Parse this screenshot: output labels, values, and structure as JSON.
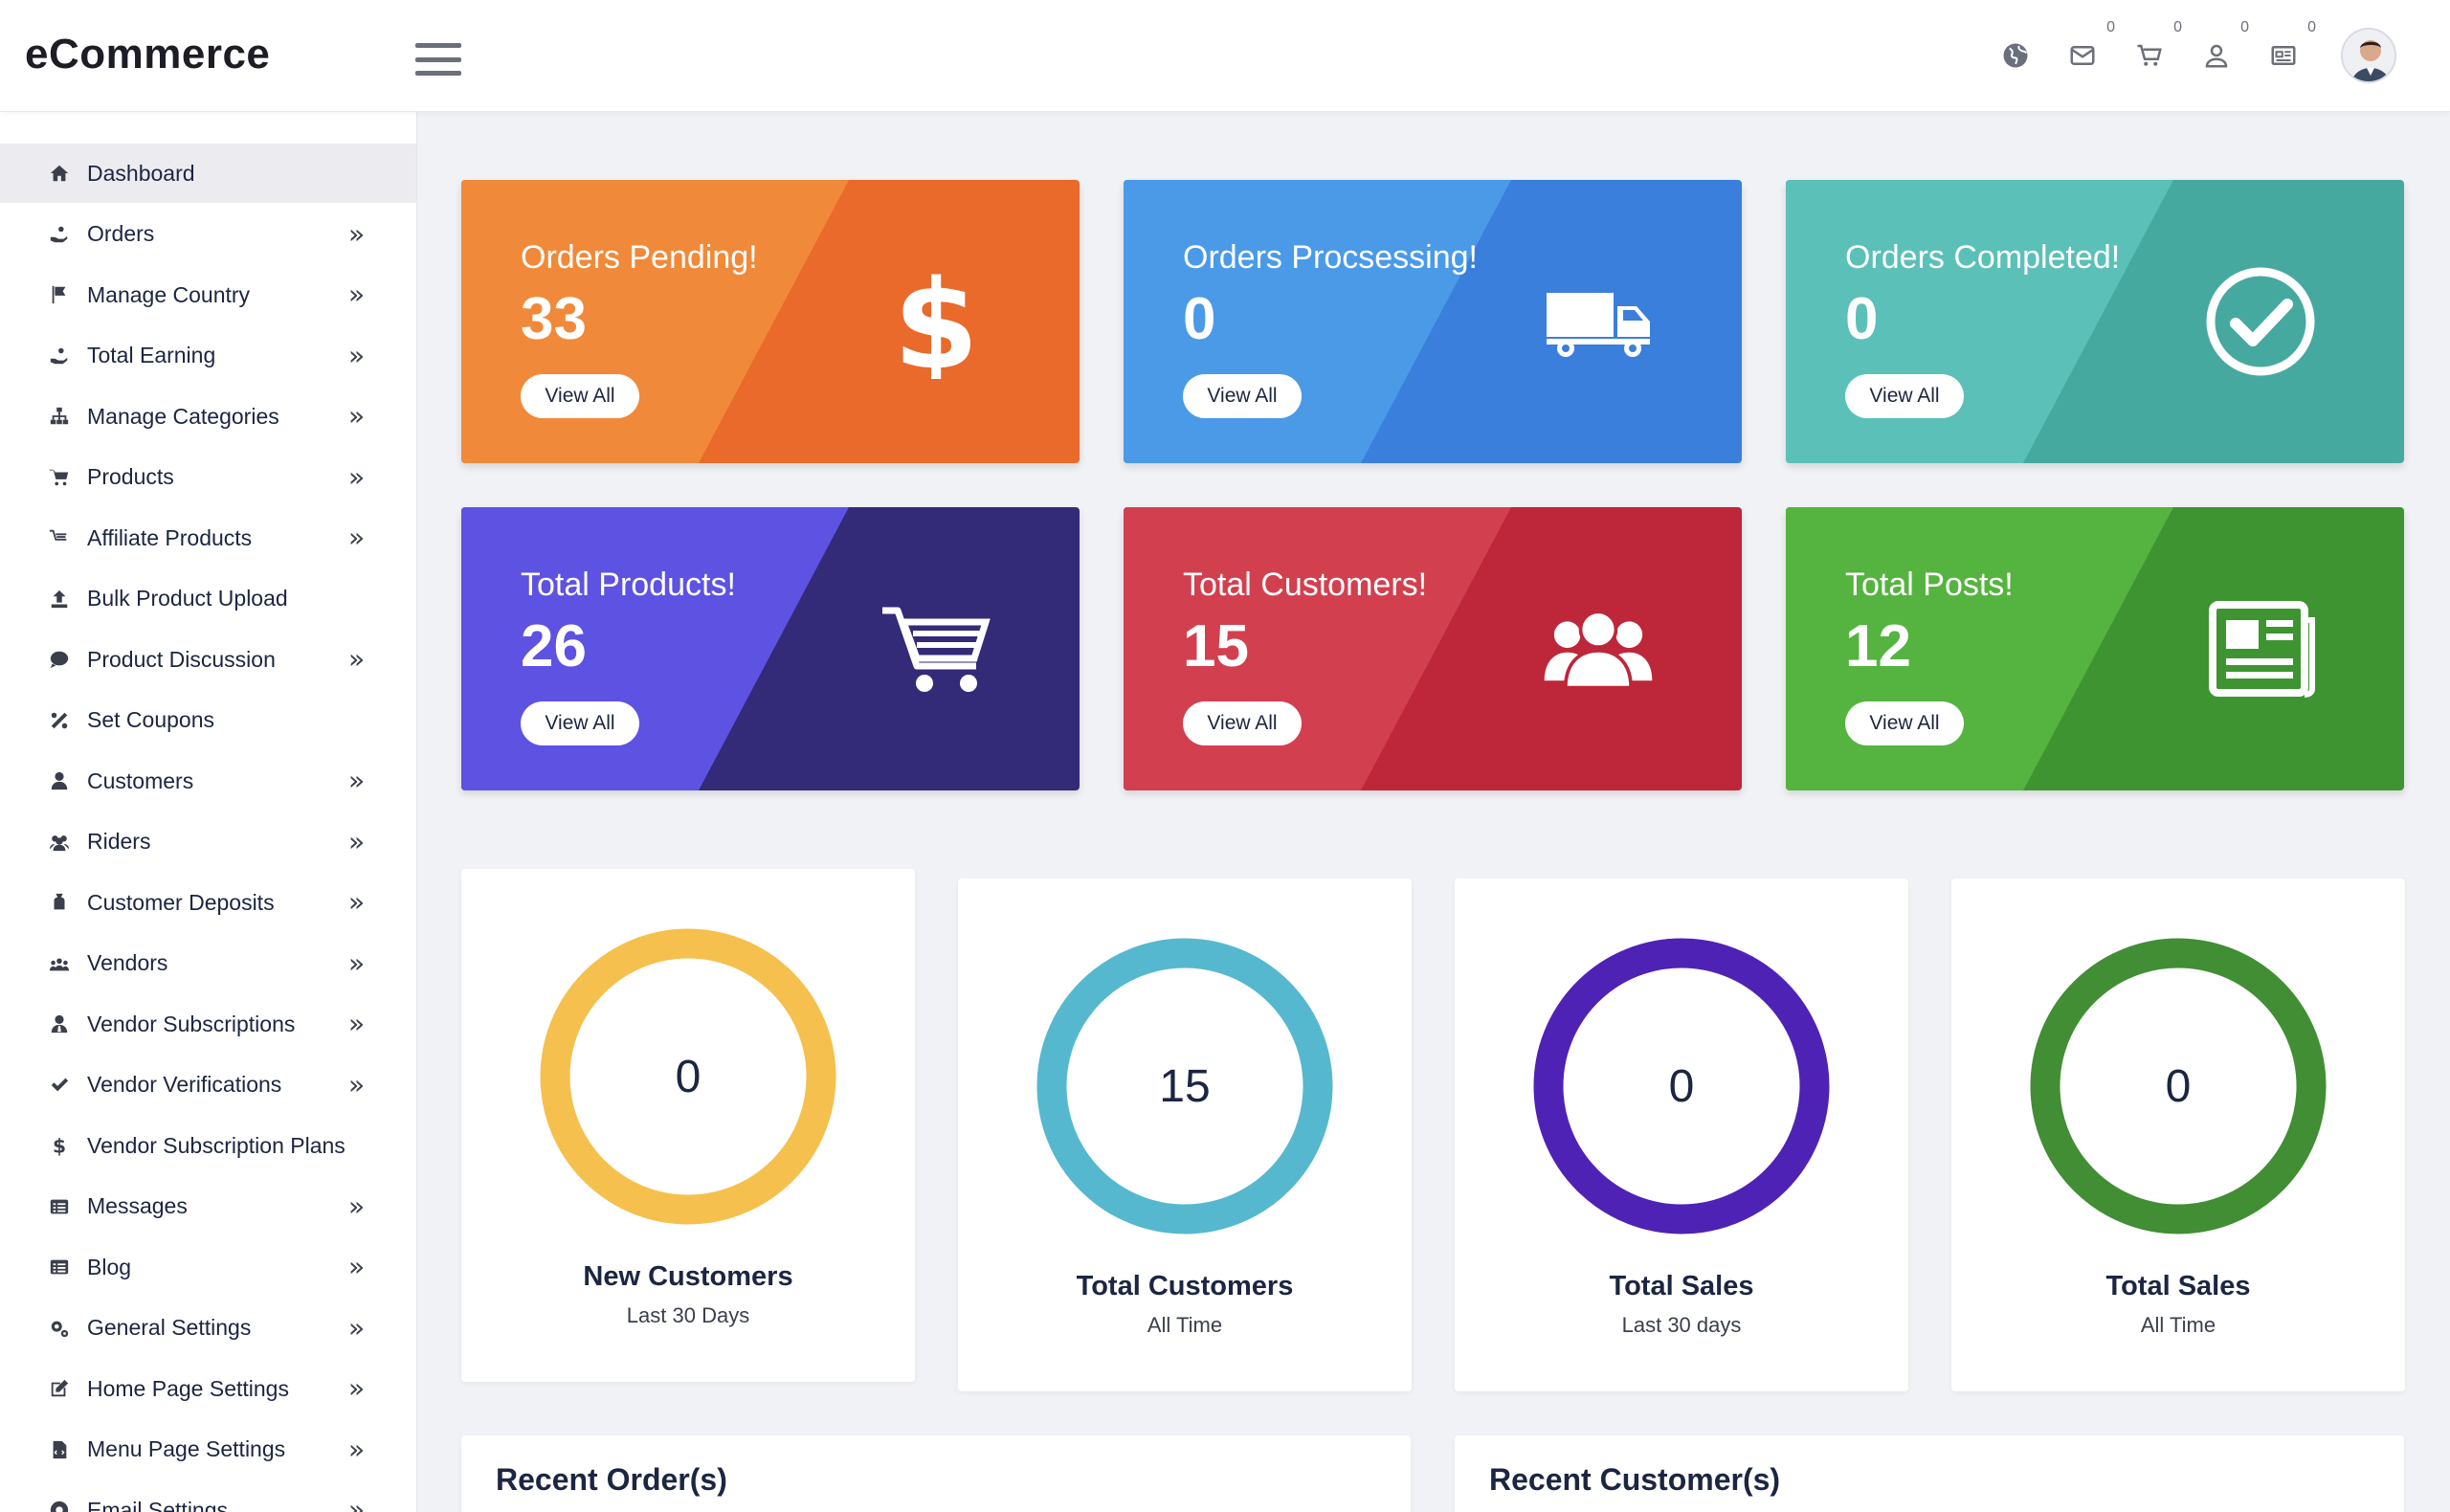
{
  "header": {
    "logo": "eCommerce",
    "badges": {
      "mail": "0",
      "cart": "0",
      "user": "0",
      "news": "0"
    }
  },
  "sidebar": {
    "items": [
      {
        "label": "Dashboard",
        "icon": "home-icon",
        "chevron": "",
        "active": true
      },
      {
        "label": "Orders",
        "icon": "hand-coin-icon",
        "chevron": "»"
      },
      {
        "label": "Manage Country",
        "icon": "flag-icon",
        "chevron": "»"
      },
      {
        "label": "Total Earning",
        "icon": "hand-coin-icon",
        "chevron": "»"
      },
      {
        "label": "Manage Categories",
        "icon": "sitemap-icon",
        "chevron": "»"
      },
      {
        "label": "Products",
        "icon": "cart-icon",
        "chevron": "»"
      },
      {
        "label": "Affiliate Products",
        "icon": "cart-outline-icon",
        "chevron": "»"
      },
      {
        "label": "Bulk Product Upload",
        "icon": "upload-icon",
        "chevron": ""
      },
      {
        "label": "Product Discussion",
        "icon": "comment-icon",
        "chevron": "»"
      },
      {
        "label": "Set Coupons",
        "icon": "percent-icon",
        "chevron": ""
      },
      {
        "label": "Customers",
        "icon": "user-icon",
        "chevron": "»"
      },
      {
        "label": "Riders",
        "icon": "users-icon",
        "chevron": "»"
      },
      {
        "label": "Customer Deposits",
        "icon": "money-bag-icon",
        "chevron": "»"
      },
      {
        "label": "Vendors",
        "icon": "group-icon",
        "chevron": "»"
      },
      {
        "label": "Vendor Subscriptions",
        "icon": "user-tie-icon",
        "chevron": "»"
      },
      {
        "label": "Vendor Verifications",
        "icon": "check-icon",
        "chevron": "»"
      },
      {
        "label": "Vendor Subscription Plans",
        "icon": "dollar-icon",
        "chevron": ""
      },
      {
        "label": "Messages",
        "icon": "list-icon",
        "chevron": "»"
      },
      {
        "label": "Blog",
        "icon": "list-icon",
        "chevron": "»"
      },
      {
        "label": "General Settings",
        "icon": "cogs-icon",
        "chevron": "»"
      },
      {
        "label": "Home Page Settings",
        "icon": "edit-icon",
        "chevron": "»"
      },
      {
        "label": "Menu Page Settings",
        "icon": "file-code-icon",
        "chevron": "»"
      },
      {
        "label": "Email Settings",
        "icon": "at-icon",
        "chevron": "»"
      }
    ]
  },
  "cards": [
    {
      "title": "Orders Pending!",
      "value": "33",
      "button": "View All",
      "color_a": "#e96a2a",
      "color_b": "#f08a3a",
      "icon": "dollar-icon"
    },
    {
      "title": "Orders Procsessing!",
      "value": "0",
      "button": "View All",
      "color_a": "#3a7fdb",
      "color_b": "#4a9ae8",
      "icon": "truck-icon"
    },
    {
      "title": "Orders Completed!",
      "value": "0",
      "button": "View All",
      "color_a": "#46a9a0",
      "color_b": "#5bc0b7",
      "icon": "check-circle-icon"
    },
    {
      "title": "Total Products!",
      "value": "26",
      "button": "View All",
      "color_a": "#332a78",
      "color_b": "#5d52e2",
      "icon": "cart-icon"
    },
    {
      "title": "Total Customers!",
      "value": "15",
      "button": "View All",
      "color_a": "#be2639",
      "color_b": "#d2404f",
      "icon": "users-icon"
    },
    {
      "title": "Total Posts!",
      "value": "12",
      "button": "View All",
      "color_a": "#3f9432",
      "color_b": "#55b43f",
      "icon": "newspaper-icon"
    }
  ],
  "gauges": [
    {
      "value": "0",
      "title": "New Customers",
      "subtitle": "Last 30 Days",
      "color": "#f5c04d"
    },
    {
      "value": "15",
      "title": "Total Customers",
      "subtitle": "All Time",
      "color": "#55b8cf"
    },
    {
      "value": "0",
      "title": "Total Sales",
      "subtitle": "Last 30 days",
      "color": "#4e22b4"
    },
    {
      "value": "0",
      "title": "Total Sales",
      "subtitle": "All Time",
      "color": "#418e34"
    }
  ],
  "panels": {
    "recent_orders": "Recent Order(s)",
    "recent_customers": "Recent Customer(s)"
  }
}
